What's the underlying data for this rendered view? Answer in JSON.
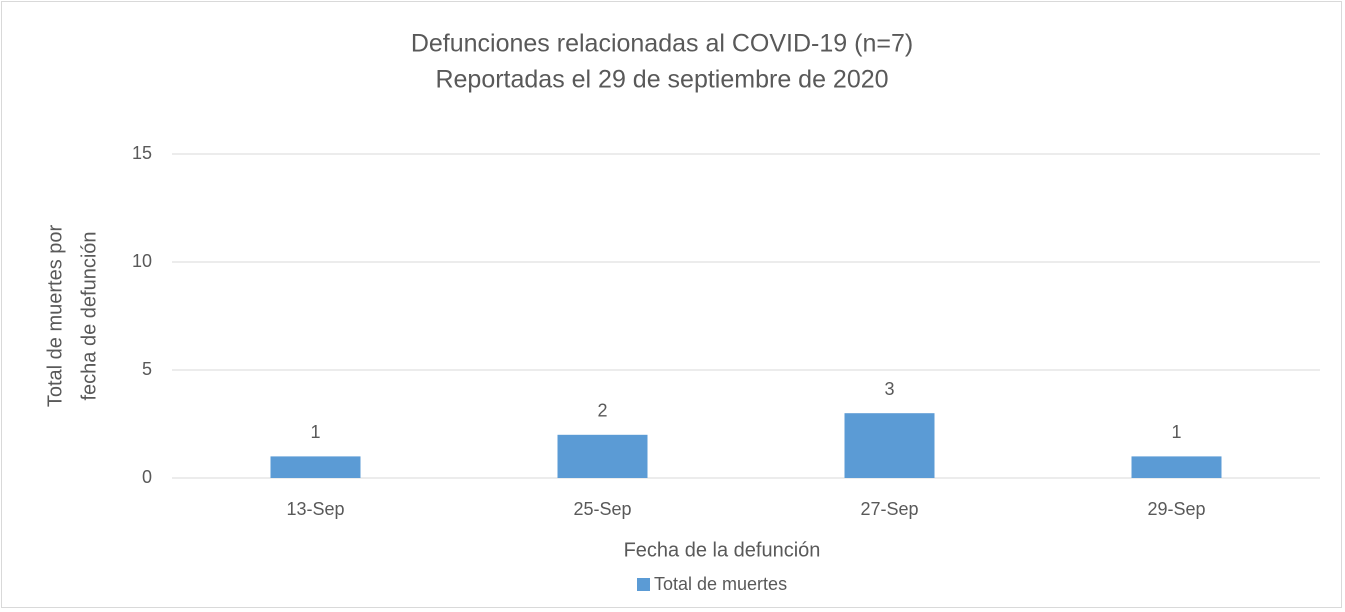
{
  "chart_data": {
    "type": "bar",
    "title": [
      "Defunciones relacionadas al COVID-19 (n=7)",
      "Reportadas el 29 de septiembre de 2020"
    ],
    "x_label": "Fecha de la defunción",
    "y_label": [
      "Total de muertes  por",
      "fecha de defunción"
    ],
    "categories": [
      "13-Sep",
      "25-Sep",
      "27-Sep",
      "29-Sep"
    ],
    "series": [
      {
        "name": "Total de muertes",
        "color": "#5b9bd5",
        "values": [
          1,
          2,
          3,
          1
        ]
      }
    ],
    "ylim": [
      0,
      15
    ],
    "yticks": [
      0,
      5,
      10,
      15
    ],
    "grid": true,
    "legend": "bottom"
  }
}
